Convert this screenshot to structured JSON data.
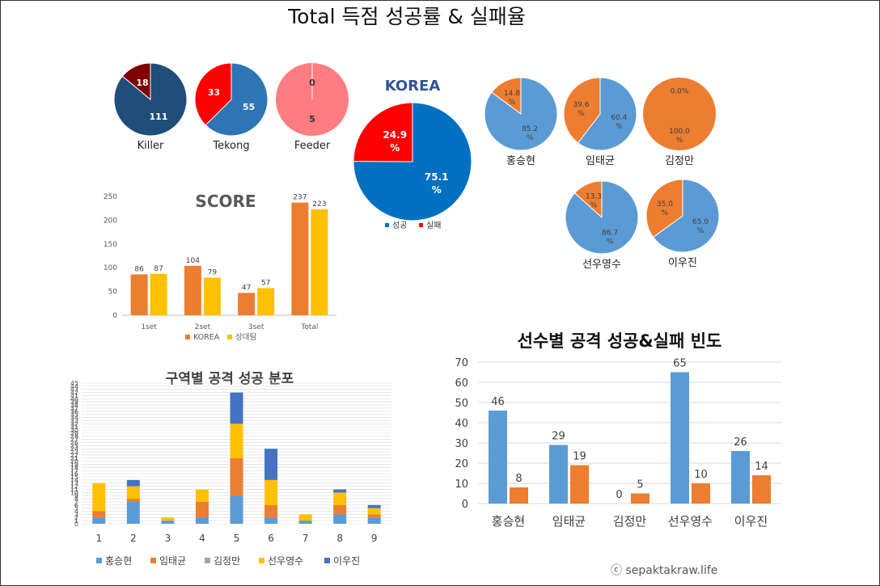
{
  "page": {
    "title": "Total  득점 성공률 & 실패율",
    "watermark": "ⓒ sepaktakraw.life"
  },
  "chart_data": [
    {
      "id": "position-pies",
      "type": "pie",
      "items": [
        {
          "label": "Killer",
          "slices": [
            {
              "value": 111,
              "label": "111",
              "color": "#1f4e79"
            },
            {
              "value": 18,
              "label": "18",
              "color": "#7f0000"
            }
          ]
        },
        {
          "label": "Tekong",
          "slices": [
            {
              "value": 55,
              "label": "55",
              "color": "#2e75b6"
            },
            {
              "value": 33,
              "label": "33",
              "color": "#ff0000"
            }
          ]
        },
        {
          "label": "Feeder",
          "slices": [
            {
              "value": 5,
              "label": "5",
              "color": "#ff7c80"
            },
            {
              "value": 0,
              "label": "0",
              "color": "#ff7c80"
            }
          ]
        }
      ]
    },
    {
      "id": "korea-pie",
      "type": "pie",
      "title": "KOREA",
      "slices": [
        {
          "name": "성공",
          "value": 75.1,
          "label": "75.1 %",
          "color": "#0070c0"
        },
        {
          "name": "실패",
          "value": 24.9,
          "label": "24.9 %",
          "color": "#ff0000"
        }
      ],
      "legend": [
        "성공",
        "실패"
      ]
    },
    {
      "id": "player-pies",
      "type": "pie",
      "items": [
        {
          "label": "홍승현",
          "success": 85.2,
          "fail": 14.8,
          "success_label": "85.2 %",
          "fail_label": "14.8 %"
        },
        {
          "label": "임태균",
          "success": 60.4,
          "fail": 39.6,
          "success_label": "60.4 %",
          "fail_label": "39.6 %"
        },
        {
          "label": "김정만",
          "success": 0.0,
          "fail": 100.0,
          "success_label": "0.0%",
          "fail_label": "100.0 %"
        },
        {
          "label": "선우영수",
          "success": 86.7,
          "fail": 13.3,
          "success_label": "86.7 %",
          "fail_label": "13.3 %"
        },
        {
          "label": "이우진",
          "success": 65.0,
          "fail": 35.0,
          "success_label": "65.0 %",
          "fail_label": "35.0 %"
        }
      ],
      "colors": {
        "success": "#5b9bd5",
        "fail": "#ed7d31"
      }
    },
    {
      "id": "score-bar",
      "type": "bar",
      "title": "SCORE",
      "categories": [
        "1set",
        "2set",
        "3set",
        "Total"
      ],
      "series": [
        {
          "name": "KOREA",
          "values": [
            86,
            104,
            47,
            237
          ],
          "color": "#ed7d31"
        },
        {
          "name": "상대팀",
          "values": [
            87,
            79,
            57,
            223
          ],
          "color": "#ffc000"
        }
      ],
      "ylim": [
        0,
        250
      ],
      "yticks": [
        0,
        50,
        100,
        150,
        200,
        250
      ],
      "legend": "bottom",
      "grid": false
    },
    {
      "id": "zone-stacked",
      "type": "bar",
      "stacked": true,
      "title": "구역별 공격 성공 분포",
      "categories": [
        "1",
        "2",
        "3",
        "4",
        "5",
        "6",
        "7",
        "8",
        "9"
      ],
      "series": [
        {
          "name": "홍승현",
          "values": [
            2,
            7,
            1,
            2,
            9,
            2,
            1,
            3,
            2
          ],
          "color": "#5b9bd5"
        },
        {
          "name": "임태균",
          "values": [
            2,
            1,
            0,
            5,
            12,
            4,
            0,
            3,
            1
          ],
          "color": "#ed7d31"
        },
        {
          "name": "김정만",
          "values": [
            0,
            0,
            0,
            0,
            0,
            0,
            0,
            0,
            0
          ],
          "color": "#a5a5a5"
        },
        {
          "name": "선우영수",
          "values": [
            9,
            4,
            1,
            4,
            11,
            8,
            2,
            4,
            2
          ],
          "color": "#ffc000"
        },
        {
          "name": "이우진",
          "values": [
            0,
            2,
            0,
            0,
            10,
            10,
            0,
            1,
            1
          ],
          "color": "#4472c4"
        }
      ],
      "ylim": [
        0,
        45
      ],
      "grid": true,
      "legend": "bottom"
    },
    {
      "id": "player-bar",
      "type": "bar",
      "title": "선수별 공격 성공&실패 빈도",
      "categories": [
        "홍승현",
        "임태균",
        "김정만",
        "선우영수",
        "이우진"
      ],
      "series": [
        {
          "name": "성공",
          "values": [
            46,
            29,
            0,
            65,
            26
          ],
          "color": "#5b9bd5"
        },
        {
          "name": "실패",
          "values": [
            8,
            19,
            5,
            10,
            14
          ],
          "color": "#ed7d31"
        }
      ],
      "ylim": [
        0,
        70
      ],
      "yticks": [
        0,
        10,
        20,
        30,
        40,
        50,
        60,
        70
      ],
      "grid": true
    }
  ]
}
